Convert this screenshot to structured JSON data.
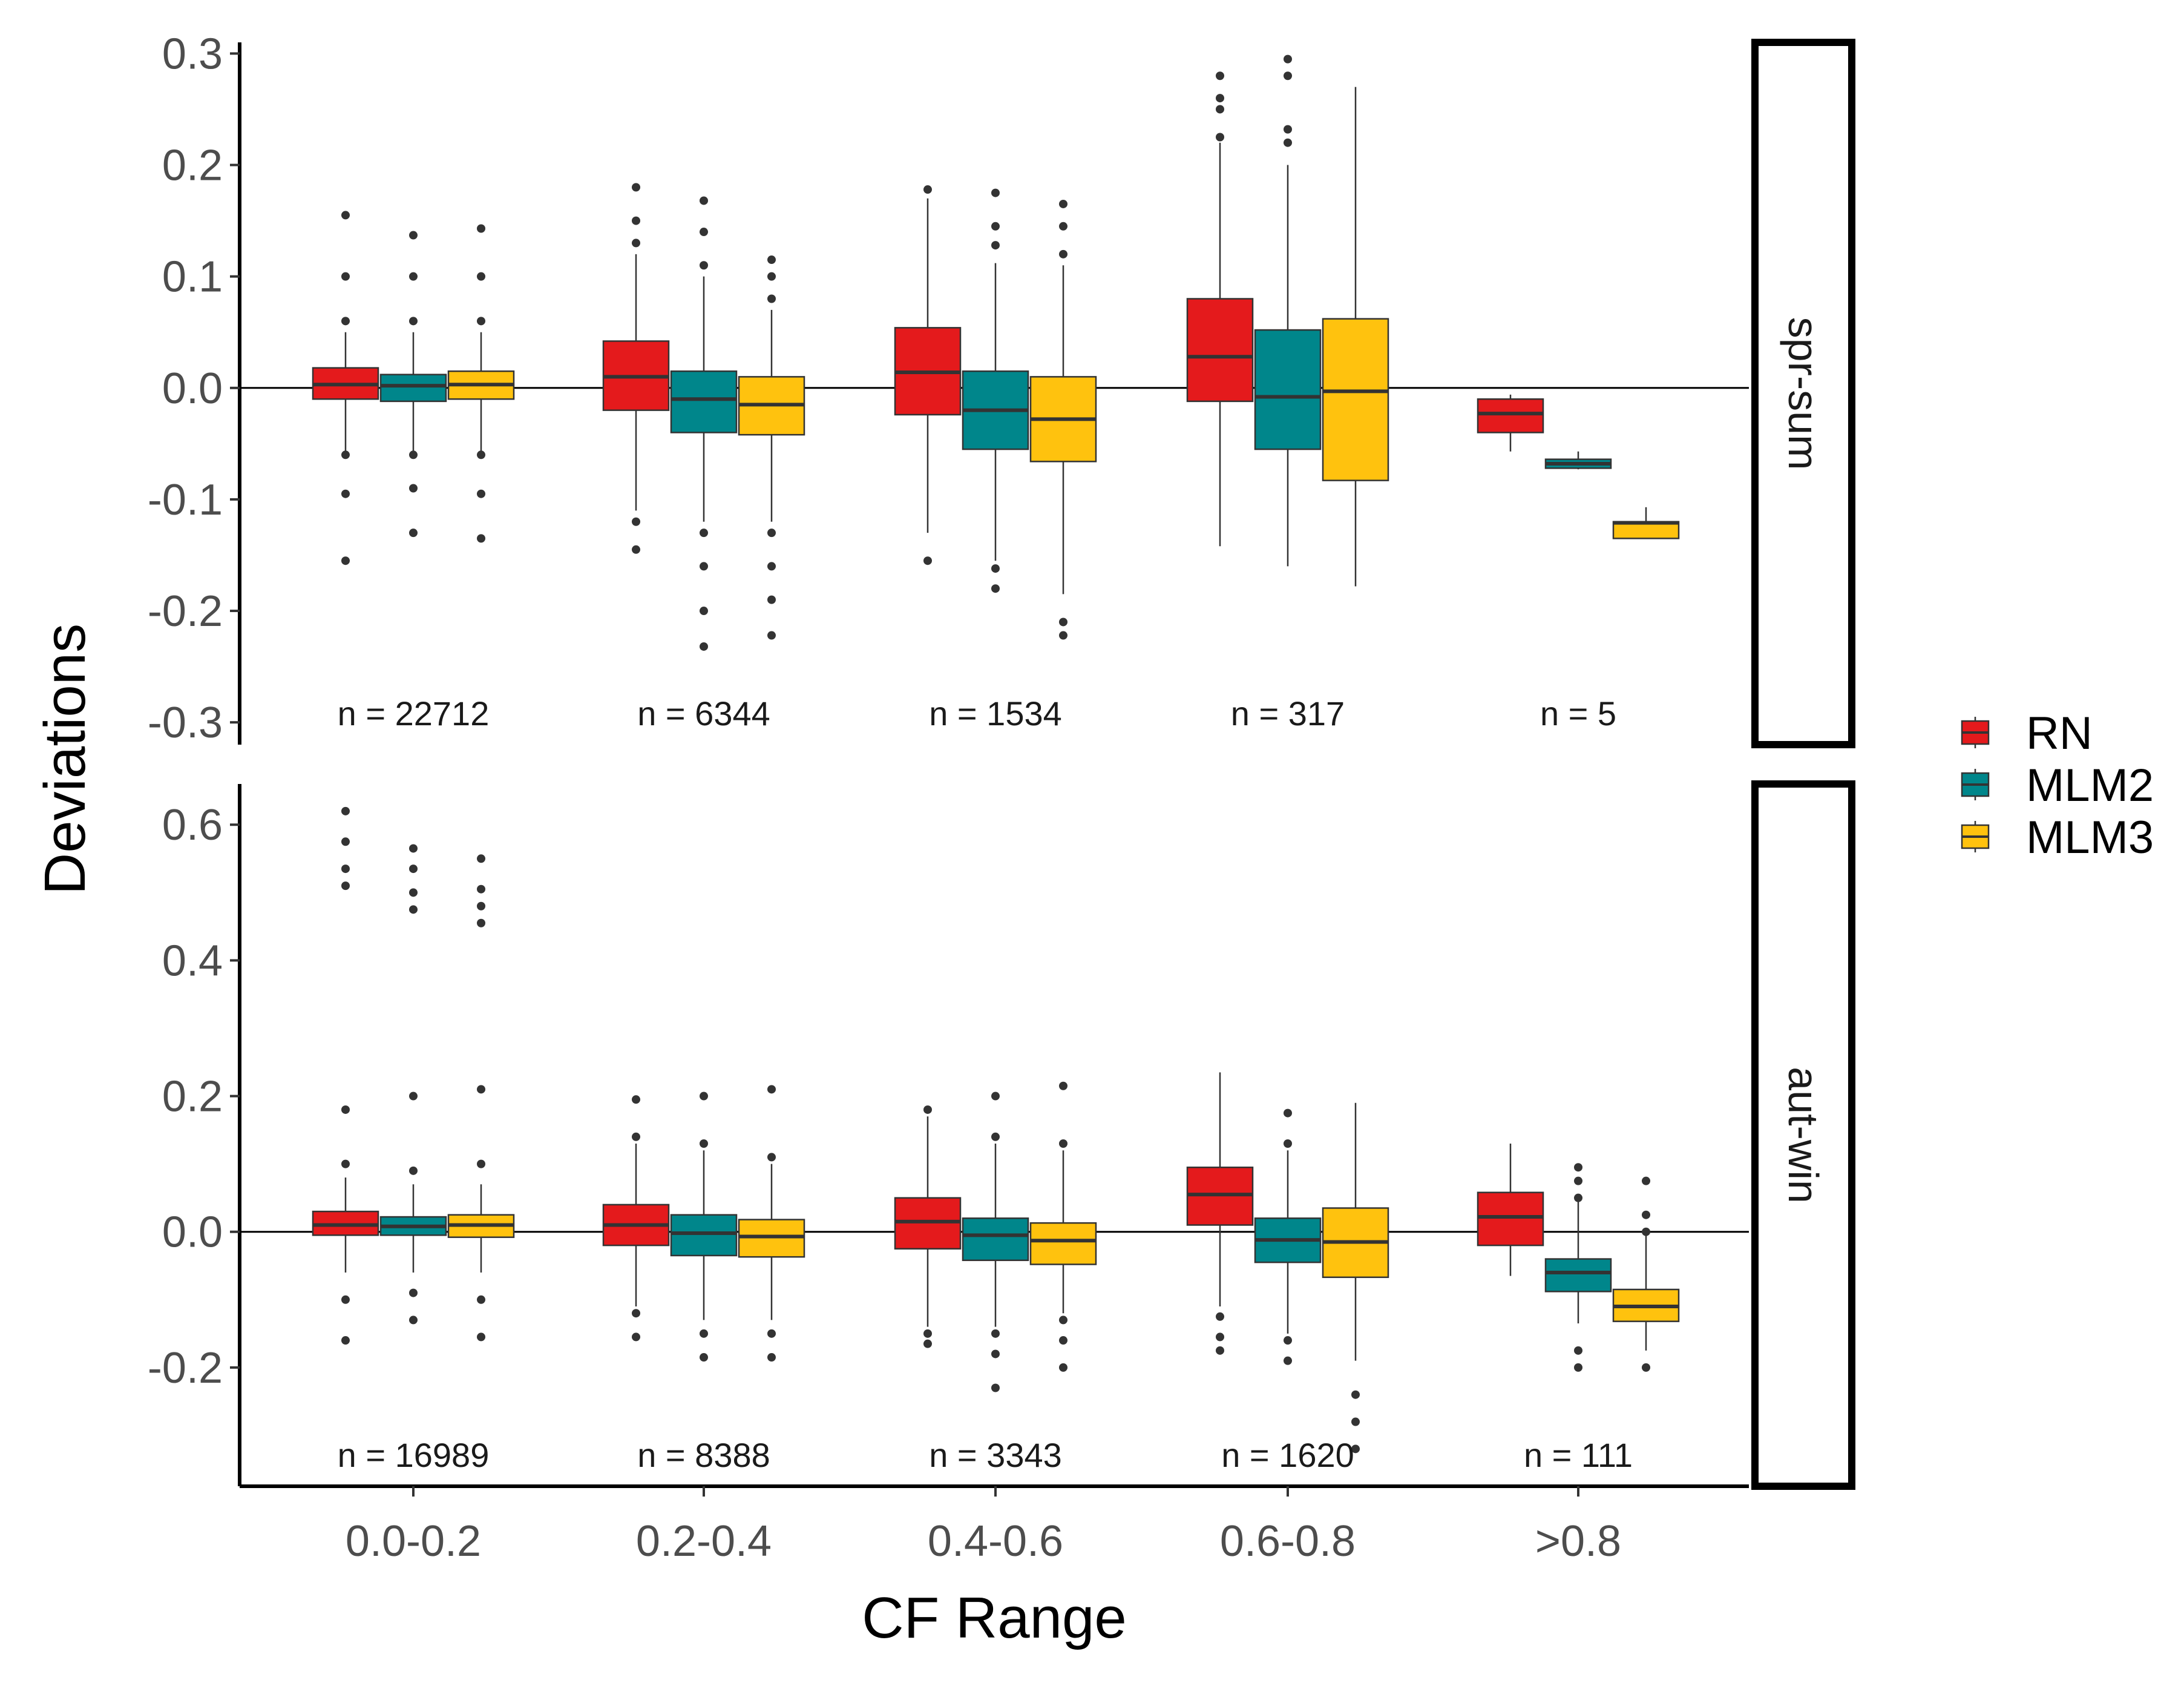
{
  "chart_data": {
    "type": "boxplot",
    "xlabel": "CF Range",
    "ylabel": "Deviations",
    "categories": [
      "0.0-0.2",
      "0.2-0.4",
      "0.4-0.6",
      "0.6-0.8",
      ">0.8"
    ],
    "legend": {
      "position": "right",
      "entries": [
        {
          "name": "RN",
          "color": "#e41a1c"
        },
        {
          "name": "MLM2",
          "color": "#00868b"
        },
        {
          "name": "MLM3",
          "color": "#ffc20e"
        }
      ]
    },
    "panels": [
      {
        "strip": "spr-sum",
        "ylim": [
          -0.32,
          0.31
        ],
        "yticks": [
          0.3,
          0.2,
          0.1,
          0.0,
          -0.1,
          -0.2,
          -0.3
        ],
        "ytick_labels": [
          "0.3",
          "0.2",
          "0.1",
          "0.0",
          "-0.1",
          "-0.2",
          "-0.3"
        ],
        "n_labels": [
          "n = 22712",
          "n = 6344",
          "n = 1534",
          "n = 317",
          "n = 5"
        ],
        "boxes": [
          [
            {
              "series": "RN",
              "min": -0.06,
              "q1": -0.01,
              "median": 0.003,
              "q3": 0.018,
              "max": 0.05,
              "out": [
                -0.155,
                -0.095,
                -0.06,
                0.06,
                0.1,
                0.155
              ]
            },
            {
              "series": "MLM2",
              "min": -0.06,
              "q1": -0.012,
              "median": 0.002,
              "q3": 0.012,
              "max": 0.05,
              "out": [
                -0.13,
                -0.09,
                -0.06,
                0.06,
                0.1,
                0.137
              ]
            },
            {
              "series": "MLM3",
              "min": -0.06,
              "q1": -0.01,
              "median": 0.003,
              "q3": 0.015,
              "max": 0.05,
              "out": [
                -0.135,
                -0.095,
                -0.06,
                0.06,
                0.1,
                0.143
              ]
            }
          ],
          [
            {
              "series": "RN",
              "min": -0.11,
              "q1": -0.02,
              "median": 0.01,
              "q3": 0.042,
              "max": 0.12,
              "out": [
                -0.145,
                -0.12,
                0.13,
                0.15,
                0.18
              ]
            },
            {
              "series": "MLM2",
              "min": -0.12,
              "q1": -0.04,
              "median": -0.01,
              "q3": 0.015,
              "max": 0.1,
              "out": [
                -0.232,
                -0.2,
                -0.16,
                -0.13,
                0.11,
                0.14,
                0.168
              ]
            },
            {
              "series": "MLM3",
              "min": -0.12,
              "q1": -0.042,
              "median": -0.015,
              "q3": 0.01,
              "max": 0.07,
              "out": [
                -0.222,
                -0.19,
                -0.16,
                -0.13,
                0.08,
                0.1,
                0.115
              ]
            }
          ],
          [
            {
              "series": "RN",
              "min": -0.13,
              "q1": -0.024,
              "median": 0.014,
              "q3": 0.054,
              "max": 0.17,
              "out": [
                -0.155,
                0.178
              ]
            },
            {
              "series": "MLM2",
              "min": -0.155,
              "q1": -0.055,
              "median": -0.02,
              "q3": 0.015,
              "max": 0.112,
              "out": [
                -0.18,
                -0.162,
                0.128,
                0.145,
                0.175
              ]
            },
            {
              "series": "MLM3",
              "min": -0.185,
              "q1": -0.066,
              "median": -0.028,
              "q3": 0.01,
              "max": 0.11,
              "out": [
                -0.222,
                -0.21,
                0.12,
                0.145,
                0.165
              ]
            }
          ],
          [
            {
              "series": "RN",
              "min": -0.142,
              "q1": -0.012,
              "median": 0.028,
              "q3": 0.08,
              "max": 0.22,
              "out": [
                0.225,
                0.25,
                0.26,
                0.28
              ]
            },
            {
              "series": "MLM2",
              "min": -0.16,
              "q1": -0.055,
              "median": -0.008,
              "q3": 0.052,
              "max": 0.2,
              "out": [
                0.22,
                0.232,
                0.28,
                0.295
              ]
            },
            {
              "series": "MLM3",
              "min": -0.178,
              "q1": -0.083,
              "median": -0.003,
              "q3": 0.062,
              "max": 0.27,
              "out": []
            }
          ],
          [
            {
              "series": "RN",
              "min": -0.057,
              "q1": -0.04,
              "median": -0.023,
              "q3": -0.01,
              "max": -0.006,
              "out": []
            },
            {
              "series": "MLM2",
              "min": -0.073,
              "q1": -0.072,
              "median": -0.068,
              "q3": -0.064,
              "max": -0.057,
              "out": []
            },
            {
              "series": "MLM3",
              "min": -0.135,
              "q1": -0.135,
              "median": -0.121,
              "q3": -0.12,
              "max": -0.107,
              "out": []
            }
          ]
        ]
      },
      {
        "strip": "aut-win",
        "ylim": [
          -0.375,
          0.66
        ],
        "yticks": [
          0.6,
          0.4,
          0.2,
          0.0,
          -0.2
        ],
        "ytick_labels": [
          "0.6",
          "0.4",
          "0.2",
          "0.0",
          "-0.2"
        ],
        "n_labels": [
          "n = 16989",
          "n = 8388",
          "n = 3343",
          "n = 1620",
          "n = 111"
        ],
        "boxes": [
          [
            {
              "series": "RN",
              "min": -0.06,
              "q1": -0.005,
              "median": 0.01,
              "q3": 0.03,
              "max": 0.08,
              "out": [
                -0.16,
                -0.1,
                0.1,
                0.18,
                0.51,
                0.535,
                0.575,
                0.62
              ]
            },
            {
              "series": "MLM2",
              "min": -0.06,
              "q1": -0.005,
              "median": 0.008,
              "q3": 0.022,
              "max": 0.07,
              "out": [
                -0.13,
                -0.09,
                0.09,
                0.2,
                0.475,
                0.5,
                0.535,
                0.565
              ]
            },
            {
              "series": "MLM3",
              "min": -0.06,
              "q1": -0.008,
              "median": 0.01,
              "q3": 0.025,
              "max": 0.07,
              "out": [
                -0.155,
                -0.1,
                0.1,
                0.21,
                0.455,
                0.48,
                0.505,
                0.55
              ]
            }
          ],
          [
            {
              "series": "RN",
              "min": -0.11,
              "q1": -0.02,
              "median": 0.01,
              "q3": 0.04,
              "max": 0.13,
              "out": [
                -0.155,
                -0.12,
                0.14,
                0.195
              ]
            },
            {
              "series": "MLM2",
              "min": -0.13,
              "q1": -0.035,
              "median": -0.002,
              "q3": 0.025,
              "max": 0.12,
              "out": [
                -0.185,
                -0.15,
                0.13,
                0.2
              ]
            },
            {
              "series": "MLM3",
              "min": -0.13,
              "q1": -0.037,
              "median": -0.007,
              "q3": 0.018,
              "max": 0.1,
              "out": [
                -0.185,
                -0.15,
                0.11,
                0.21
              ]
            }
          ],
          [
            {
              "series": "RN",
              "min": -0.14,
              "q1": -0.025,
              "median": 0.015,
              "q3": 0.05,
              "max": 0.17,
              "out": [
                -0.165,
                -0.15,
                0.18
              ]
            },
            {
              "series": "MLM2",
              "min": -0.14,
              "q1": -0.042,
              "median": -0.005,
              "q3": 0.02,
              "max": 0.13,
              "out": [
                -0.23,
                -0.18,
                -0.15,
                0.14,
                0.2
              ]
            },
            {
              "series": "MLM3",
              "min": -0.12,
              "q1": -0.048,
              "median": -0.013,
              "q3": 0.013,
              "max": 0.12,
              "out": [
                -0.2,
                -0.16,
                -0.13,
                0.13,
                0.215
              ]
            }
          ],
          [
            {
              "series": "RN",
              "min": -0.11,
              "q1": 0.01,
              "median": 0.055,
              "q3": 0.095,
              "max": 0.235,
              "out": [
                -0.175,
                -0.155,
                -0.125
              ]
            },
            {
              "series": "MLM2",
              "min": -0.15,
              "q1": -0.045,
              "median": -0.012,
              "q3": 0.02,
              "max": 0.12,
              "out": [
                -0.19,
                -0.16,
                0.13,
                0.175
              ]
            },
            {
              "series": "MLM3",
              "min": -0.19,
              "q1": -0.067,
              "median": -0.015,
              "q3": 0.035,
              "max": 0.19,
              "out": [
                -0.32,
                -0.28,
                -0.24
              ]
            }
          ],
          [
            {
              "series": "RN",
              "min": -0.065,
              "q1": -0.02,
              "median": 0.022,
              "q3": 0.058,
              "max": 0.13,
              "out": []
            },
            {
              "series": "MLM2",
              "min": -0.135,
              "q1": -0.088,
              "median": -0.06,
              "q3": -0.04,
              "max": 0.045,
              "out": [
                -0.2,
                -0.175,
                0.05,
                0.075,
                0.095
              ]
            },
            {
              "series": "MLM3",
              "min": -0.175,
              "q1": -0.132,
              "median": -0.11,
              "q3": -0.085,
              "max": 0.0,
              "out": [
                -0.2,
                0.0,
                0.025,
                0.075
              ]
            }
          ]
        ]
      }
    ]
  }
}
